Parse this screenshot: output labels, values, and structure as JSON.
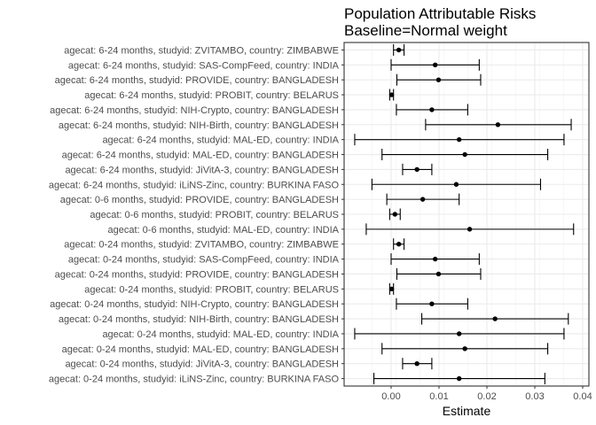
{
  "chart_data": {
    "type": "scatter",
    "title_lines": [
      "Population Attributable Risks",
      "Baseline=Normal weight"
    ],
    "xlabel": "Estimate",
    "xlim": [
      -0.0095,
      0.04
    ],
    "x_ticks": [
      0.0,
      0.01,
      0.02,
      0.03,
      0.04
    ],
    "x_tick_labels": [
      "0.00",
      "0.01",
      "0.02",
      "0.03",
      "0.04"
    ],
    "grid": true,
    "points": [
      {
        "label": "agecat: 6-24 months, studyid: ZVITAMBO, country: ZIMBABWE",
        "estimate": 0.0016,
        "lower": 0.0005,
        "upper": 0.0027
      },
      {
        "label": "agecat: 6-24 months, studyid: SAS-CompFeed, country: INDIA",
        "estimate": 0.0092,
        "lower": 0.0,
        "upper": 0.0184
      },
      {
        "label": "agecat: 6-24 months, studyid: PROVIDE, country: BANGLADESH",
        "estimate": 0.0099,
        "lower": 0.0012,
        "upper": 0.0187
      },
      {
        "label": "agecat: 6-24 months, studyid: PROBIT, country: BELARUS",
        "estimate": 0.0001,
        "lower": -0.0003,
        "upper": 0.0005
      },
      {
        "label": "agecat: 6-24 months, studyid: NIH-Crypto, country: BANGLADESH",
        "estimate": 0.0085,
        "lower": 0.0011,
        "upper": 0.016
      },
      {
        "label": "agecat: 6-24 months, studyid: NIH-Birth, country: BANGLADESH",
        "estimate": 0.0223,
        "lower": 0.0072,
        "upper": 0.0376
      },
      {
        "label": "agecat: 6-24 months, studyid: MAL-ED, country: INDIA",
        "estimate": 0.0142,
        "lower": -0.0076,
        "upper": 0.0361
      },
      {
        "label": "agecat: 6-24 months, studyid: MAL-ED, country: BANGLADESH",
        "estimate": 0.0154,
        "lower": -0.0019,
        "upper": 0.0327
      },
      {
        "label": "agecat: 6-24 months, studyid: JiVitA-3, country: BANGLADESH",
        "estimate": 0.0054,
        "lower": 0.0024,
        "upper": 0.0085
      },
      {
        "label": "agecat: 6-24 months, studyid: iLiNS-Zinc, country: BURKINA FASO",
        "estimate": 0.0136,
        "lower": -0.004,
        "upper": 0.0312
      },
      {
        "label": "agecat: 0-6 months, studyid: PROVIDE, country: BANGLADESH",
        "estimate": 0.0066,
        "lower": -0.0009,
        "upper": 0.0142
      },
      {
        "label": "agecat: 0-6 months, studyid: PROBIT, country: BELARUS",
        "estimate": 0.0008,
        "lower": -0.0003,
        "upper": 0.0019
      },
      {
        "label": "agecat: 0-6 months, studyid: MAL-ED, country: INDIA",
        "estimate": 0.0164,
        "lower": -0.0052,
        "upper": 0.0381
      },
      {
        "label": "agecat: 0-24 months, studyid: ZVITAMBO, country: ZIMBABWE",
        "estimate": 0.0016,
        "lower": 0.0005,
        "upper": 0.0027
      },
      {
        "label": "agecat: 0-24 months, studyid: SAS-CompFeed, country: INDIA",
        "estimate": 0.0092,
        "lower": 0.0,
        "upper": 0.0184
      },
      {
        "label": "agecat: 0-24 months, studyid: PROVIDE, country: BANGLADESH",
        "estimate": 0.0099,
        "lower": 0.0012,
        "upper": 0.0187
      },
      {
        "label": "agecat: 0-24 months, studyid: PROBIT, country: BELARUS",
        "estimate": 0.0001,
        "lower": -0.0003,
        "upper": 0.0005
      },
      {
        "label": "agecat: 0-24 months, studyid: NIH-Crypto, country: BANGLADESH",
        "estimate": 0.0085,
        "lower": 0.0011,
        "upper": 0.016
      },
      {
        "label": "agecat: 0-24 months, studyid: NIH-Birth, country: BANGLADESH",
        "estimate": 0.0217,
        "lower": 0.0064,
        "upper": 0.037
      },
      {
        "label": "agecat: 0-24 months, studyid: MAL-ED, country: INDIA",
        "estimate": 0.0142,
        "lower": -0.0076,
        "upper": 0.0361
      },
      {
        "label": "agecat: 0-24 months, studyid: MAL-ED, country: BANGLADESH",
        "estimate": 0.0154,
        "lower": -0.0019,
        "upper": 0.0327
      },
      {
        "label": "agecat: 0-24 months, studyid: JiVitA-3, country: BANGLADESH",
        "estimate": 0.0054,
        "lower": 0.0024,
        "upper": 0.0085
      },
      {
        "label": "agecat: 0-24 months, studyid: iLiNS-Zinc, country: BURKINA FASO",
        "estimate": 0.0142,
        "lower": -0.0036,
        "upper": 0.0321
      }
    ]
  }
}
